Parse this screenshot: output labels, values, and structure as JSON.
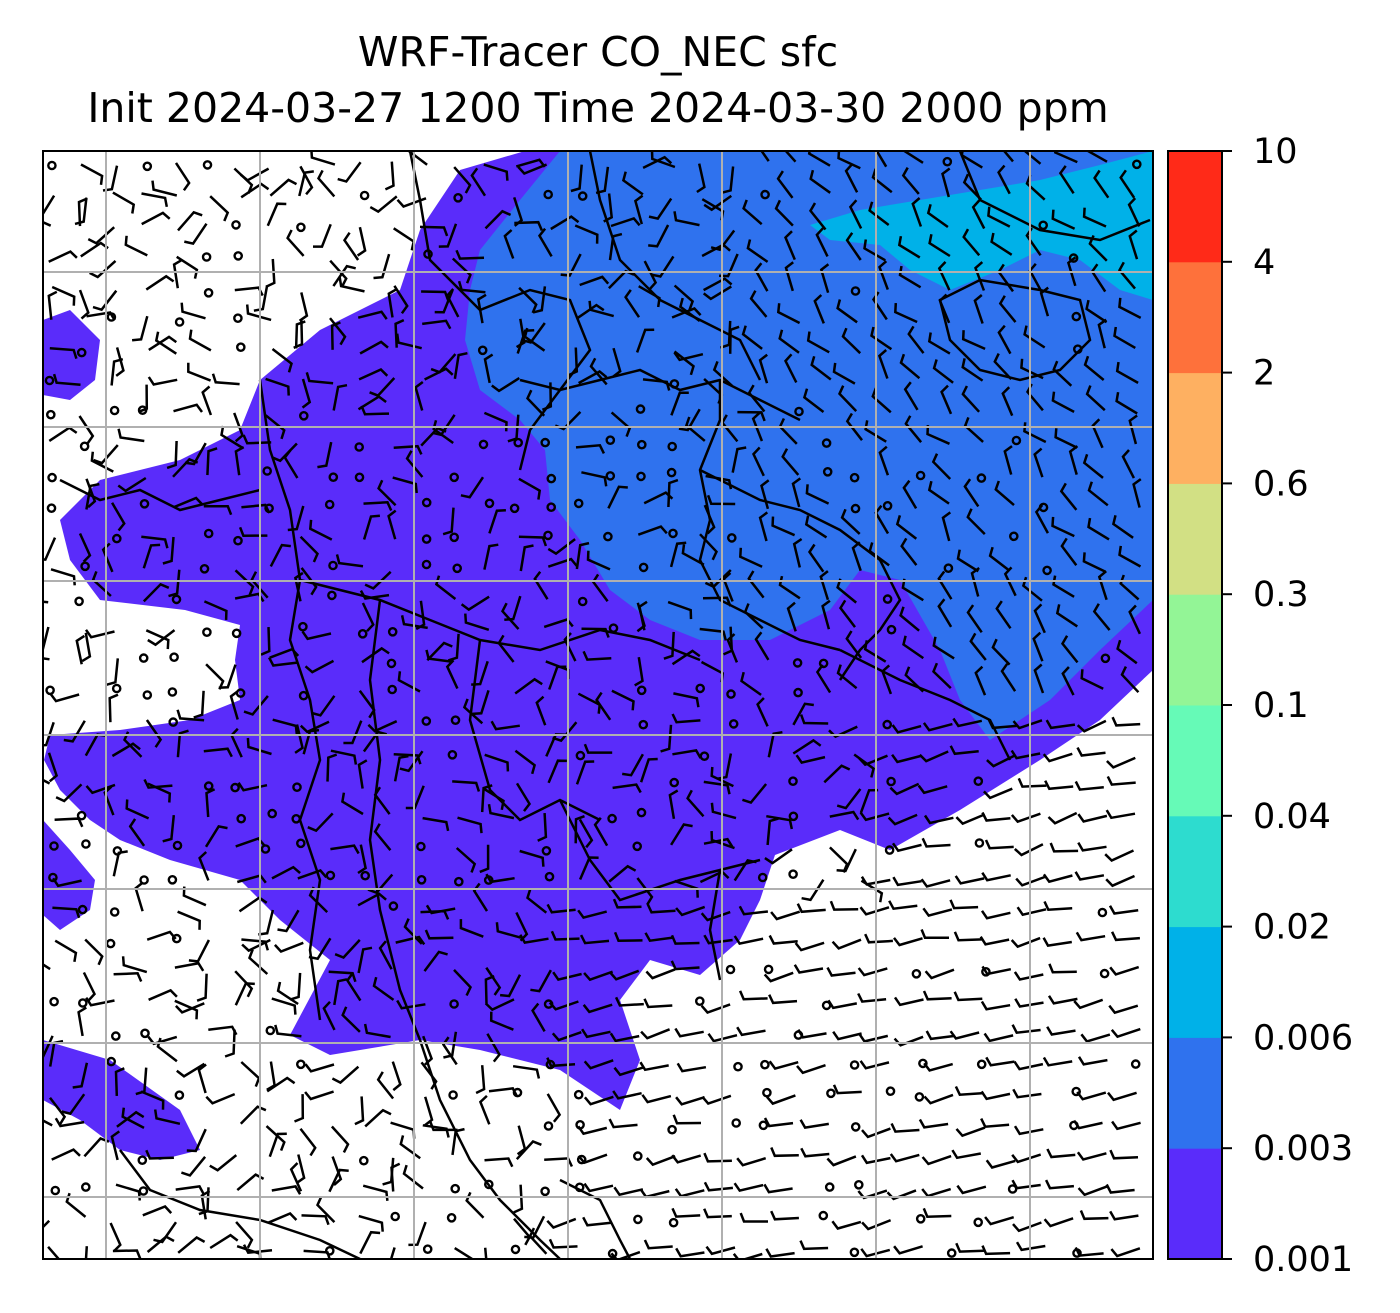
{
  "title": {
    "line1": "WRF-Tracer CO_NEC sfc",
    "line2": "Init 2024-03-27 1200 Time 2024-03-30 2000 ppm"
  },
  "chart_data": {
    "type": "heatmap",
    "title": "WRF-Tracer CO_NEC sfc",
    "subtitle": "Init 2024-03-27 1200 Time 2024-03-30 2000 ppm",
    "colorbar": {
      "levels": [
        "0.001",
        "0.003",
        "0.006",
        "0.02",
        "0.04",
        "0.1",
        "0.3",
        "0.6",
        "2",
        "4",
        "10"
      ],
      "colors": [
        "#5a2cfa",
        "#2f72ee",
        "#00b1e8",
        "#2ddccf",
        "#66fab7",
        "#93f596",
        "#d2e084",
        "#feb061",
        "#fe713b",
        "#ff2a18"
      ]
    },
    "fill": {
      "below_min": "#ffffff",
      "regions": [
        {
          "level_index": 0,
          "description": "0.001-0.003 band"
        },
        {
          "level_index": 1,
          "description": "0.003-0.006 band"
        },
        {
          "level_index": 2,
          "description": "0.006-0.02 band"
        }
      ]
    },
    "grid": true,
    "wind_barbs": true,
    "coastlines": true
  }
}
